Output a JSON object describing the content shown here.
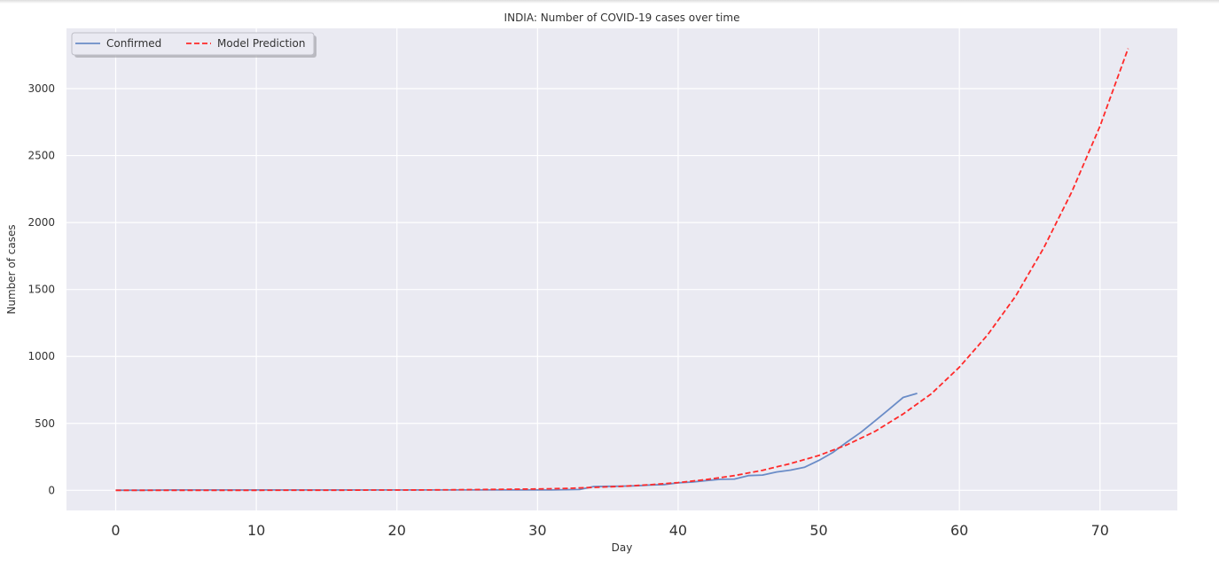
{
  "chart_data": {
    "type": "line",
    "title": "INDIA: Number of COVID-19 cases over time",
    "xlabel": "Day",
    "ylabel": "Number of cases",
    "xlim": [
      -3.5,
      75.5
    ],
    "ylim": [
      -150,
      3450
    ],
    "xticks": [
      0,
      10,
      20,
      30,
      40,
      50,
      60,
      70
    ],
    "yticks": [
      0,
      500,
      1000,
      1500,
      2000,
      2500,
      3000
    ],
    "grid": true,
    "legend_position": "top-left",
    "series": [
      {
        "name": "Confirmed",
        "color": "#6a8cc7",
        "style": "solid",
        "x": [
          0,
          1,
          2,
          3,
          4,
          5,
          6,
          7,
          8,
          9,
          10,
          11,
          12,
          13,
          14,
          15,
          16,
          17,
          18,
          19,
          20,
          21,
          22,
          23,
          24,
          25,
          26,
          27,
          28,
          29,
          30,
          31,
          32,
          33,
          34,
          35,
          36,
          37,
          38,
          39,
          40,
          41,
          42,
          43,
          44,
          45,
          46,
          47,
          48,
          49,
          50,
          51,
          52,
          53,
          54,
          55,
          56,
          57
        ],
        "values": [
          1,
          1,
          1,
          2,
          3,
          3,
          3,
          3,
          3,
          3,
          3,
          3,
          3,
          3,
          3,
          3,
          3,
          3,
          3,
          3,
          3,
          3,
          3,
          3,
          3,
          3,
          3,
          3,
          3,
          3,
          3,
          3,
          5,
          6,
          29,
          30,
          31,
          34,
          39,
          43,
          56,
          62,
          73,
          82,
          84,
          110,
          114,
          137,
          151,
          173,
          223,
          283,
          360,
          434,
          519,
          606,
          694,
          724
        ]
      },
      {
        "name": "Model Prediction",
        "color": "#ff2a2a",
        "style": "dashed",
        "x": [
          0,
          2,
          4,
          6,
          8,
          10,
          12,
          14,
          16,
          18,
          20,
          22,
          24,
          26,
          28,
          30,
          32,
          34,
          36,
          38,
          40,
          42,
          44,
          46,
          48,
          50,
          52,
          54,
          56,
          58,
          60,
          62,
          64,
          66,
          68,
          70,
          72
        ],
        "values": [
          0,
          0,
          0,
          0,
          0,
          0,
          1,
          1,
          1,
          2,
          2,
          3,
          4,
          6,
          8,
          10,
          14,
          22,
          30,
          42,
          58,
          80,
          110,
          150,
          200,
          260,
          340,
          440,
          570,
          720,
          920,
          1160,
          1450,
          1810,
          2230,
          2720,
          3300
        ]
      }
    ]
  }
}
